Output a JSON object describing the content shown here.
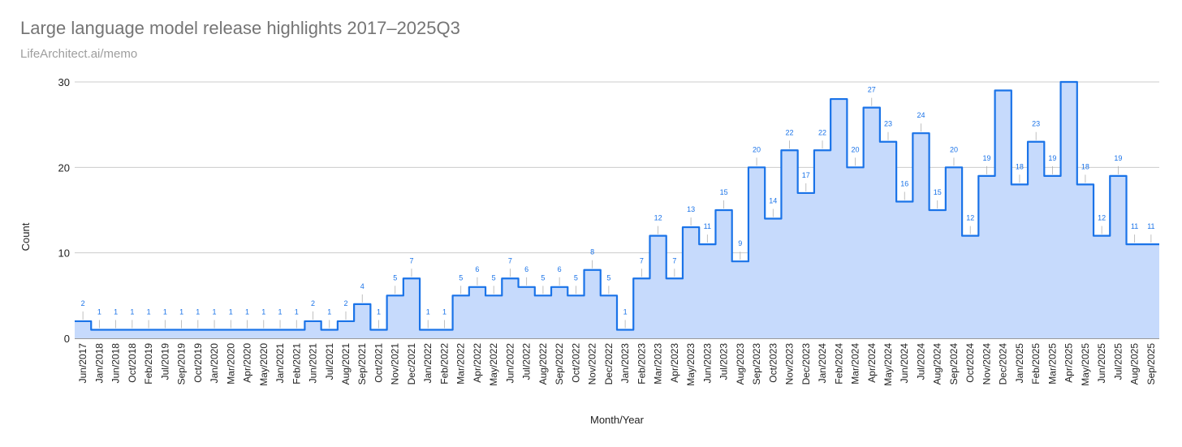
{
  "chart_data": {
    "type": "area",
    "title": "Large language model release highlights 2017–2025Q3",
    "subtitle": "LifeArchitect.ai/memo",
    "xlabel": "Month/Year",
    "ylabel": "Count",
    "ylim": [
      0,
      30
    ],
    "yticks": [
      0,
      10,
      20,
      30
    ],
    "grid": true,
    "colors": {
      "fill": "#c6dafc",
      "line": "#1a73e8",
      "label": "#1a73e8",
      "grid": "#cccccc"
    },
    "categories": [
      "Jun/2017",
      "Jan/2018",
      "Jun/2018",
      "Oct/2018",
      "Feb/2019",
      "Jul/2019",
      "Sep/2019",
      "Oct/2019",
      "Jan/2020",
      "Mar/2020",
      "Apr/2020",
      "May/2020",
      "Jan/2021",
      "Feb/2021",
      "Jun/2021",
      "Jul/2021",
      "Aug/2021",
      "Sep/2021",
      "Oct/2021",
      "Nov/2021",
      "Dec/2021",
      "Jan/2022",
      "Feb/2022",
      "Mar/2022",
      "Apr/2022",
      "May/2022",
      "Jun/2022",
      "Jul/2022",
      "Aug/2022",
      "Sep/2022",
      "Oct/2022",
      "Nov/2022",
      "Dec/2022",
      "Jan/2023",
      "Feb/2023",
      "Mar/2023",
      "Apr/2023",
      "May/2023",
      "Jun/2023",
      "Jul/2023",
      "Aug/2023",
      "Sep/2023",
      "Oct/2023",
      "Nov/2023",
      "Dec/2023",
      "Jan/2024",
      "Feb/2024",
      "Mar/2024",
      "Apr/2024",
      "May/2024",
      "Jun/2024",
      "Jul/2024",
      "Aug/2024",
      "Sep/2024",
      "Oct/2024",
      "Nov/2024",
      "Dec/2024",
      "Jan/2025",
      "Feb/2025",
      "Mar/2025",
      "Apr/2025",
      "May/2025",
      "Jun/2025",
      "Jul/2025",
      "Aug/2025",
      "Sep/2025"
    ],
    "values": [
      2,
      1,
      1,
      1,
      1,
      1,
      1,
      1,
      1,
      1,
      1,
      1,
      1,
      1,
      2,
      1,
      2,
      4,
      1,
      5,
      7,
      1,
      1,
      5,
      6,
      5,
      7,
      6,
      5,
      6,
      5,
      8,
      5,
      1,
      7,
      12,
      7,
      13,
      11,
      15,
      9,
      20,
      14,
      22,
      17,
      22,
      28,
      20,
      27,
      23,
      16,
      24,
      15,
      20,
      12,
      19,
      29,
      18,
      23,
      19,
      30,
      18,
      12,
      19,
      11,
      11
    ],
    "data_labels": [
      "2",
      "1",
      "1",
      "1",
      "1",
      "1",
      "1",
      "1",
      "1",
      "1",
      "1",
      "1",
      "1",
      "1",
      "2",
      "1",
      "2",
      "4",
      "1",
      "5",
      "7",
      "1",
      "1",
      "5",
      "6",
      "5",
      "7",
      "6",
      "5",
      "6",
      "5",
      "8",
      "5",
      "1",
      "7",
      "12",
      "7",
      "13",
      "11",
      "15",
      "9",
      "20",
      "14",
      "22",
      "17",
      "22",
      "",
      "20",
      "27",
      "23",
      "16",
      "24",
      "15",
      "20",
      "12",
      "19",
      "",
      "18",
      "23",
      "19",
      "",
      "18",
      "12",
      "19",
      "11",
      "11"
    ]
  }
}
